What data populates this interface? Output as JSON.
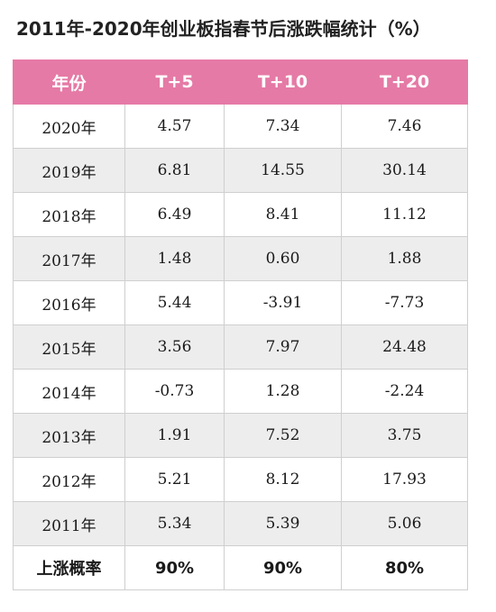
{
  "chart_data": {
    "type": "table",
    "title": "2011年-2020年创业板指春节后涨跌幅统计（%）",
    "columns": [
      "年份",
      "T+5",
      "T+10",
      "T+20"
    ],
    "rows": [
      [
        "2020年",
        "4.57",
        "7.34",
        "7.46"
      ],
      [
        "2019年",
        "6.81",
        "14.55",
        "30.14"
      ],
      [
        "2018年",
        "6.49",
        "8.41",
        "11.12"
      ],
      [
        "2017年",
        "1.48",
        "0.60",
        "1.88"
      ],
      [
        "2016年",
        "5.44",
        "-3.91",
        "-7.73"
      ],
      [
        "2015年",
        "3.56",
        "7.97",
        "24.48"
      ],
      [
        "2014年",
        "-0.73",
        "1.28",
        "-2.24"
      ],
      [
        "2013年",
        "1.91",
        "7.52",
        "3.75"
      ],
      [
        "2012年",
        "5.21",
        "8.12",
        "17.93"
      ],
      [
        "2011年",
        "5.34",
        "5.39",
        "5.06"
      ]
    ],
    "summary_row": [
      "上涨概率",
      "90%",
      "90%",
      "80%"
    ],
    "header_color": "#e57aa6",
    "stripe_color": "#ededed"
  }
}
